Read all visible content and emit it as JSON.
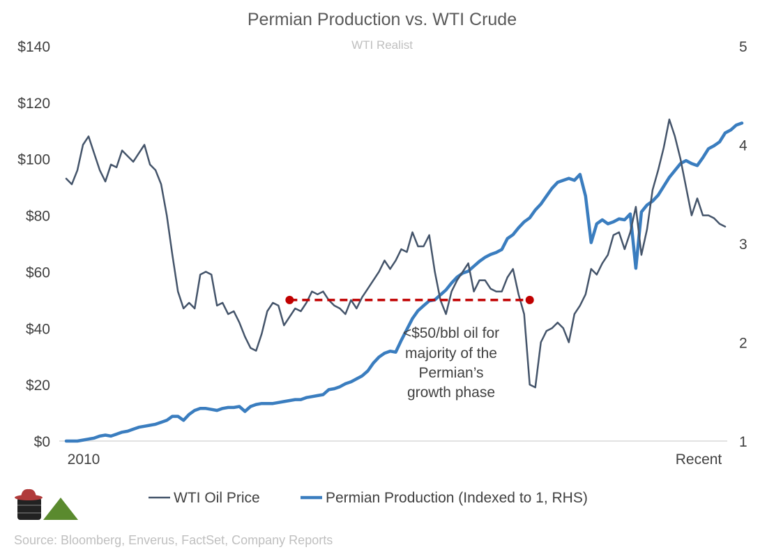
{
  "chart_data": {
    "type": "line",
    "title": "Permian Production vs. WTI Crude",
    "subtitle": "WTI Realist",
    "x_start_label": "2010",
    "x_end_label": "Recent",
    "y_left": {
      "min": 0,
      "max": 140,
      "ticks": [
        0,
        20,
        40,
        60,
        80,
        100,
        120,
        140
      ],
      "prefix": "$"
    },
    "y_right": {
      "min": 1,
      "max": 5,
      "ticks": [
        1,
        2,
        3,
        4,
        5
      ]
    },
    "grid": false,
    "legend_position": "bottom",
    "series": [
      {
        "name": "WTI Oil Price",
        "axis": "left",
        "color": "#44546a",
        "values": [
          93,
          91,
          96,
          105,
          108,
          102,
          96,
          92,
          98,
          97,
          103,
          101,
          99,
          102,
          105,
          98,
          96,
          91,
          80,
          66,
          53,
          47,
          49,
          47,
          59,
          60,
          59,
          48,
          49,
          45,
          46,
          42,
          37,
          33,
          32,
          38,
          46,
          49,
          48,
          41,
          44,
          47,
          46,
          49,
          53,
          52,
          53,
          50,
          48,
          47,
          45,
          50,
          47,
          51,
          54,
          57,
          60,
          64,
          61,
          64,
          68,
          67,
          74,
          69,
          69,
          73,
          60,
          50,
          45,
          53,
          57,
          60,
          63,
          53,
          57,
          57,
          54,
          53,
          53,
          58,
          61,
          52,
          45,
          20,
          19,
          35,
          39,
          40,
          42,
          40,
          35,
          45,
          48,
          52,
          61,
          59,
          63,
          66,
          73,
          74,
          68,
          74,
          83,
          66,
          75,
          89,
          96,
          104,
          114,
          108,
          100,
          90,
          80,
          86,
          80,
          80,
          79,
          77,
          76
        ],
        "peaks_annotated": []
      },
      {
        "name": "Permian Production (Indexed to 1, RHS)",
        "axis": "right",
        "color": "#3a7dbf",
        "values": [
          1.0,
          1.0,
          1.0,
          1.01,
          1.02,
          1.03,
          1.05,
          1.06,
          1.05,
          1.07,
          1.09,
          1.1,
          1.12,
          1.14,
          1.15,
          1.16,
          1.17,
          1.19,
          1.21,
          1.25,
          1.25,
          1.21,
          1.27,
          1.31,
          1.33,
          1.33,
          1.32,
          1.31,
          1.33,
          1.34,
          1.34,
          1.35,
          1.3,
          1.35,
          1.37,
          1.38,
          1.38,
          1.38,
          1.39,
          1.4,
          1.41,
          1.42,
          1.42,
          1.44,
          1.45,
          1.46,
          1.47,
          1.52,
          1.53,
          1.55,
          1.58,
          1.6,
          1.63,
          1.66,
          1.71,
          1.79,
          1.85,
          1.89,
          1.91,
          1.9,
          2.02,
          2.13,
          2.24,
          2.32,
          2.37,
          2.42,
          2.43,
          2.48,
          2.53,
          2.6,
          2.66,
          2.7,
          2.72,
          2.77,
          2.82,
          2.86,
          2.89,
          2.91,
          2.94,
          3.05,
          3.09,
          3.16,
          3.22,
          3.26,
          3.34,
          3.4,
          3.48,
          3.56,
          3.62,
          3.64,
          3.66,
          3.64,
          3.7,
          3.48,
          3.01,
          3.2,
          3.24,
          3.2,
          3.22,
          3.25,
          3.24,
          3.3,
          2.75,
          3.32,
          3.39,
          3.43,
          3.49,
          3.58,
          3.67,
          3.74,
          3.81,
          3.84,
          3.81,
          3.79,
          3.87,
          3.96,
          3.99,
          4.03,
          4.12,
          4.15,
          4.2,
          4.22
        ]
      }
    ],
    "threshold": {
      "value": 50,
      "start_index": 40,
      "end_index": 83
    },
    "annotation": [
      "<$50/bbl oil for",
      "majority of the",
      "Permian’s",
      "growth phase"
    ]
  },
  "colors": {
    "wti": "#44546a",
    "permian": "#3a7dbf",
    "threshold": "#c00000",
    "logo_hat": "#b03a3a",
    "logo_barrel": "#222222",
    "logo_triangle": "#5a8a2e"
  },
  "logo": {
    "icon": "cowboy-barrel-logo-icon"
  },
  "source": "Source: Bloomberg, Enverus, FactSet, Company Reports"
}
